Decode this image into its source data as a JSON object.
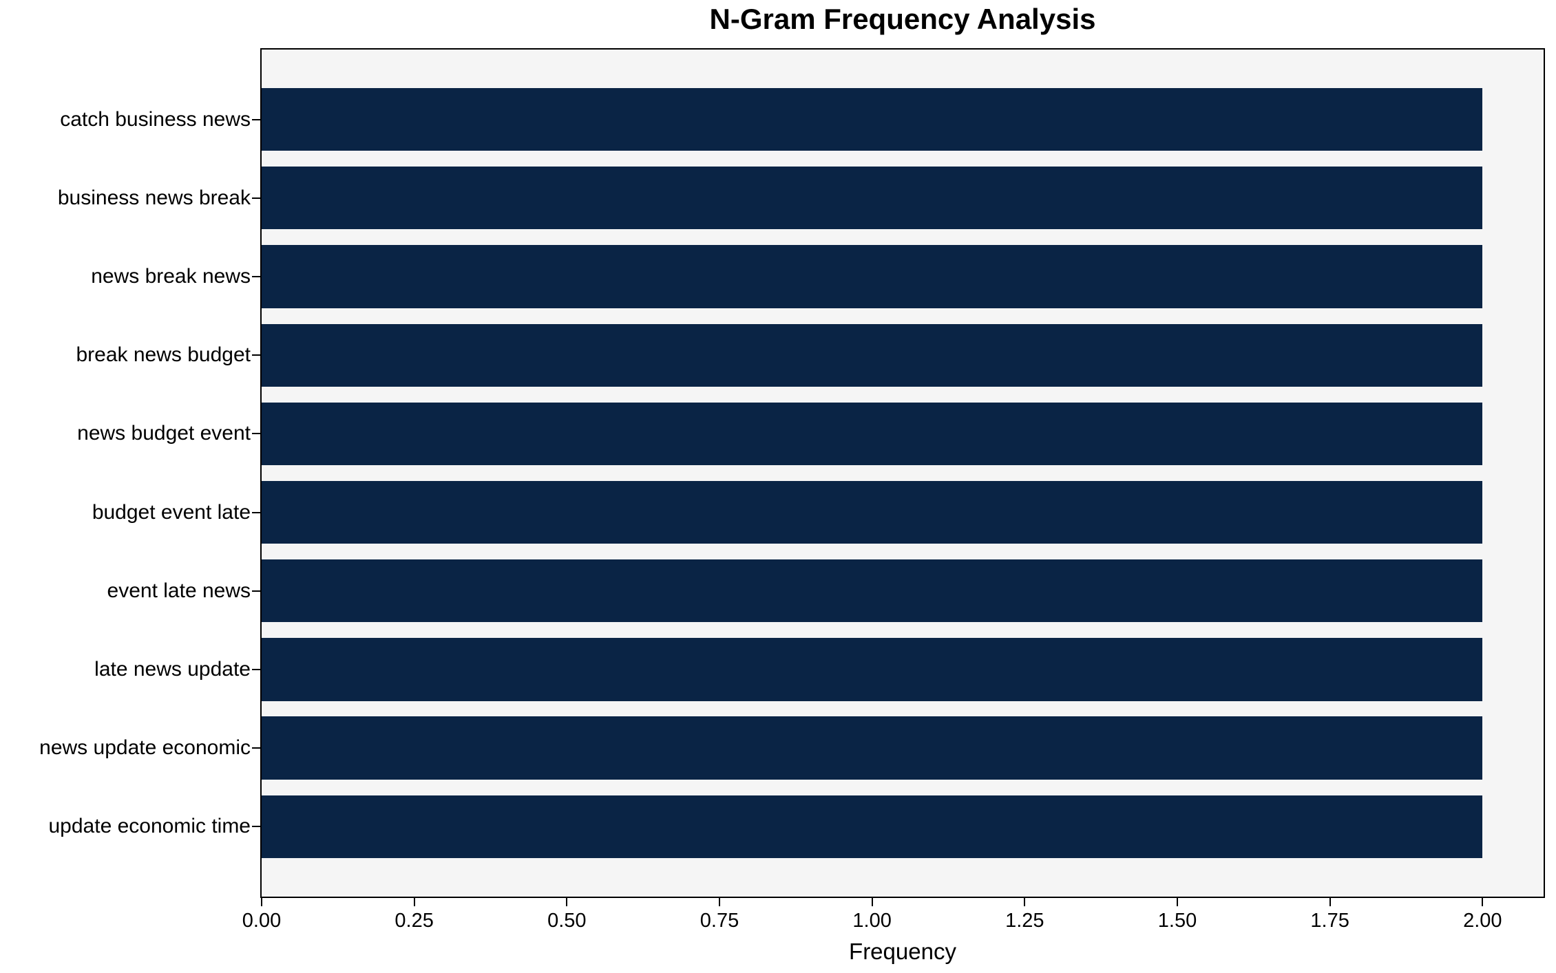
{
  "chart_data": {
    "type": "bar",
    "orientation": "horizontal",
    "title": "N-Gram Frequency Analysis",
    "xlabel": "Frequency",
    "ylabel": "",
    "categories": [
      "catch business news",
      "business news break",
      "news break news",
      "break news budget",
      "news budget event",
      "budget event late",
      "event late news",
      "late news update",
      "news update economic",
      "update economic time"
    ],
    "values": [
      2,
      2,
      2,
      2,
      2,
      2,
      2,
      2,
      2,
      2
    ],
    "xlim": [
      0,
      2.1
    ],
    "xticks": [
      0,
      0.25,
      0.5,
      0.75,
      1.0,
      1.25,
      1.5,
      1.75,
      2.0
    ],
    "xtick_labels": [
      "0.00",
      "0.25",
      "0.50",
      "0.75",
      "1.00",
      "1.25",
      "1.50",
      "1.75",
      "2.00"
    ],
    "grid": false,
    "legend": null,
    "colors": {
      "bar": "#0a2445",
      "plot_background": "#f5f5f5",
      "figure_background": "#ffffff",
      "spine": "#000000",
      "text": "#000000"
    }
  }
}
